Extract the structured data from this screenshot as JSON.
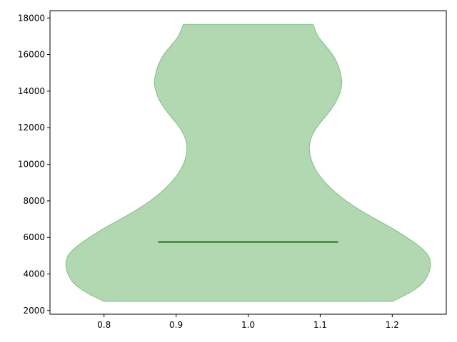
{
  "chart_data": {
    "type": "violin",
    "title": "",
    "xlabel": "",
    "ylabel": "",
    "xlim": [
      0.725,
      1.275
    ],
    "ylim": [
      1800,
      18400
    ],
    "grid": false,
    "x_ticks": [
      0.8,
      0.9,
      1.0,
      1.1,
      1.2
    ],
    "x_tick_labels": [
      "0.8",
      "0.9",
      "1.0",
      "1.1",
      "1.2"
    ],
    "y_ticks": [
      2000,
      4000,
      6000,
      8000,
      10000,
      12000,
      14000,
      16000,
      18000
    ],
    "y_tick_labels": [
      "2000",
      "4000",
      "6000",
      "8000",
      "10000",
      "12000",
      "14000",
      "16000",
      "18000"
    ],
    "violins": [
      {
        "position": 1.0,
        "width": 0.5,
        "y_min": 2500,
        "y_max": 17650,
        "median": 5750,
        "median_half_width": 0.125,
        "fill_color": "#b2d8b2",
        "edge_color": "#7fbf7f",
        "median_color": "#006400",
        "profile": [
          {
            "y": 2500,
            "half_width": 0.2
          },
          {
            "y": 3000,
            "half_width": 0.225
          },
          {
            "y": 3500,
            "half_width": 0.242
          },
          {
            "y": 4000,
            "half_width": 0.25
          },
          {
            "y": 4500,
            "half_width": 0.253
          },
          {
            "y": 5000,
            "half_width": 0.25
          },
          {
            "y": 5500,
            "half_width": 0.238
          },
          {
            "y": 6000,
            "half_width": 0.22
          },
          {
            "y": 6500,
            "half_width": 0.2
          },
          {
            "y": 7000,
            "half_width": 0.177
          },
          {
            "y": 7500,
            "half_width": 0.155
          },
          {
            "y": 8000,
            "half_width": 0.136
          },
          {
            "y": 8500,
            "half_width": 0.12
          },
          {
            "y": 9000,
            "half_width": 0.107
          },
          {
            "y": 9500,
            "half_width": 0.097
          },
          {
            "y": 10000,
            "half_width": 0.09
          },
          {
            "y": 10500,
            "half_width": 0.086
          },
          {
            "y": 11000,
            "half_width": 0.085
          },
          {
            "y": 11500,
            "half_width": 0.088
          },
          {
            "y": 12000,
            "half_width": 0.095
          },
          {
            "y": 12500,
            "half_width": 0.105
          },
          {
            "y": 13000,
            "half_width": 0.115
          },
          {
            "y": 13500,
            "half_width": 0.123
          },
          {
            "y": 14000,
            "half_width": 0.128
          },
          {
            "y": 14500,
            "half_width": 0.13
          },
          {
            "y": 15000,
            "half_width": 0.128
          },
          {
            "y": 15500,
            "half_width": 0.124
          },
          {
            "y": 16000,
            "half_width": 0.117
          },
          {
            "y": 16500,
            "half_width": 0.107
          },
          {
            "y": 17000,
            "half_width": 0.097
          },
          {
            "y": 17650,
            "half_width": 0.09
          }
        ]
      }
    ]
  }
}
